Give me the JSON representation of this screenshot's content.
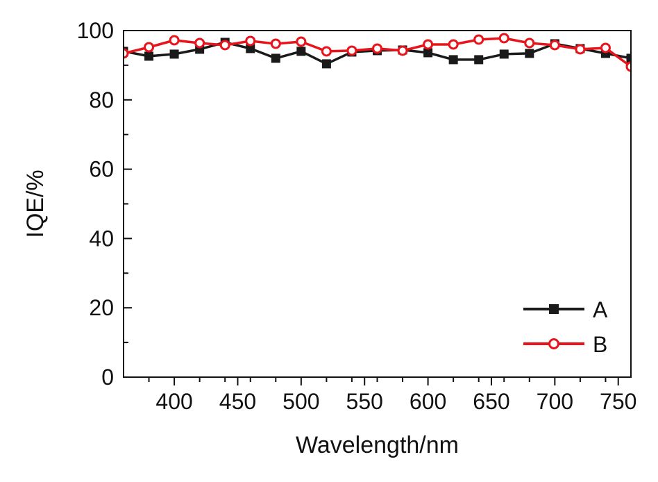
{
  "chart_data": {
    "type": "line",
    "title": "",
    "xlabel": "Wavelength/nm",
    "ylabel": "IQE/%",
    "xlim": [
      360,
      760
    ],
    "ylim": [
      0,
      100
    ],
    "x_ticks": [
      400,
      450,
      500,
      550,
      600,
      650,
      700,
      750
    ],
    "x_minor_ticks": [
      380,
      420,
      440,
      460,
      480,
      520,
      540,
      560,
      580,
      620,
      640,
      660,
      680,
      720,
      740
    ],
    "y_ticks": [
      0,
      20,
      40,
      60,
      80,
      100
    ],
    "grid": false,
    "legend_position": "bottom-right",
    "series": [
      {
        "name": "A",
        "color": "#1a1a1a",
        "marker": "square",
        "x": [
          360,
          380,
          400,
          420,
          440,
          460,
          480,
          500,
          520,
          540,
          560,
          580,
          600,
          620,
          640,
          660,
          680,
          700,
          720,
          740,
          760
        ],
        "y": [
          94.0,
          92.6,
          93.2,
          94.6,
          96.6,
          94.8,
          92.0,
          94.0,
          90.4,
          93.8,
          94.2,
          94.4,
          93.6,
          91.6,
          91.6,
          93.2,
          93.4,
          96.2,
          94.8,
          93.4,
          92.0
        ]
      },
      {
        "name": "B",
        "color": "#e8141b",
        "marker": "circle",
        "x": [
          360,
          380,
          400,
          420,
          440,
          460,
          480,
          500,
          520,
          540,
          560,
          580,
          600,
          620,
          640,
          660,
          680,
          700,
          720,
          740,
          760
        ],
        "y": [
          93.4,
          95.2,
          97.2,
          96.4,
          95.8,
          97.0,
          96.2,
          96.8,
          94.0,
          94.2,
          94.8,
          94.2,
          96.0,
          96.0,
          97.4,
          97.8,
          96.4,
          95.8,
          94.6,
          95.0,
          89.6
        ]
      }
    ]
  }
}
